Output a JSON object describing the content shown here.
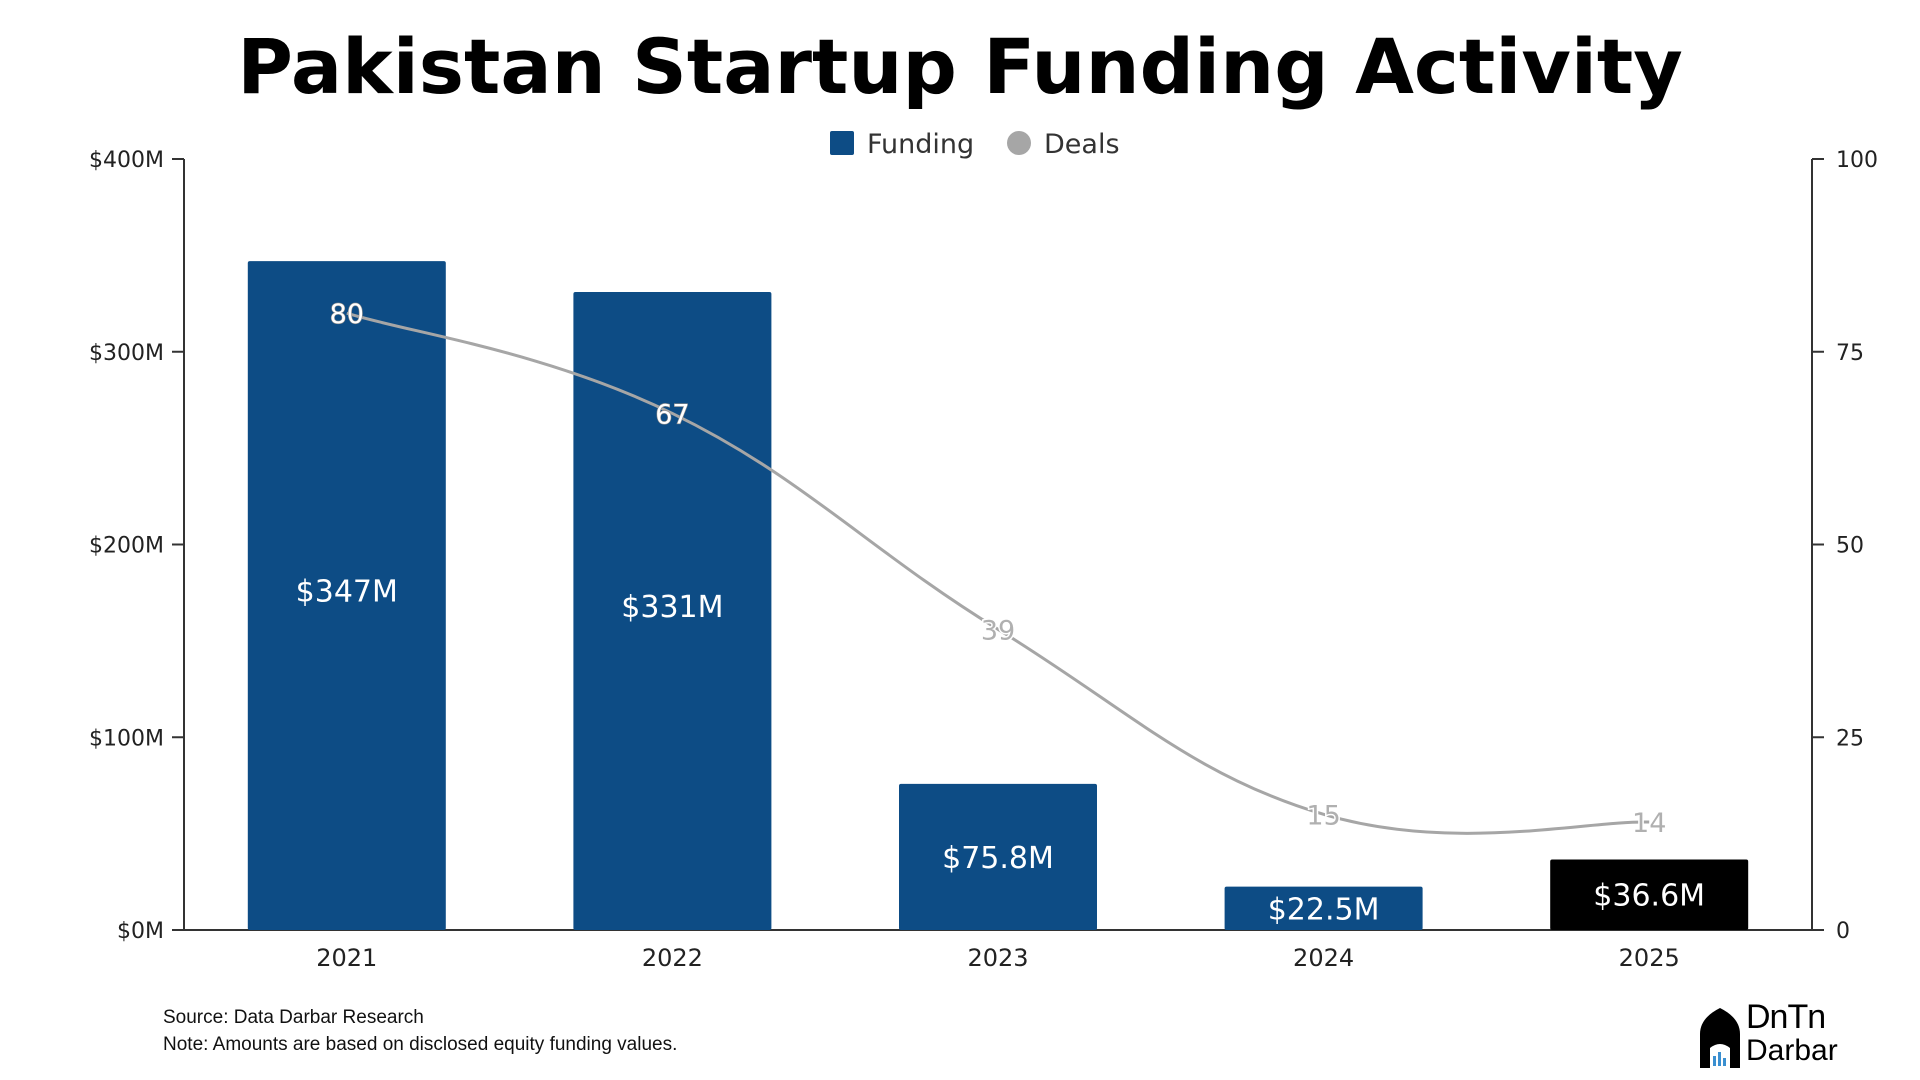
{
  "title": "Pakistan Startup Funding Activity",
  "chart_data": {
    "type": "bar",
    "title": "Pakistan Startup Funding Activity",
    "categories": [
      "2021",
      "2022",
      "2023",
      "2024",
      "2025"
    ],
    "series": [
      {
        "name": "Funding",
        "type": "bar",
        "axis": "left",
        "values": [
          347,
          331,
          75.8,
          22.5,
          36.6
        ],
        "labels": [
          "$347M",
          "$331M",
          "$75.8M",
          "$22.5M",
          "$36.6M"
        ],
        "colors": [
          "#0d4c85",
          "#0d4c85",
          "#0d4c85",
          "#0d4c85",
          "#000000"
        ]
      },
      {
        "name": "Deals",
        "type": "line",
        "axis": "right",
        "values": [
          80,
          67,
          39,
          15,
          14
        ],
        "labels": [
          "80",
          "67",
          "39",
          "15",
          "14"
        ],
        "color": "#a6a6a6"
      }
    ],
    "y_left": {
      "range": [
        0,
        400
      ],
      "ticks": [
        0,
        100,
        200,
        300,
        400
      ],
      "tick_labels": [
        "$0M",
        "$100M",
        "$200M",
        "$300M",
        "$400M"
      ]
    },
    "y_right": {
      "range": [
        0,
        100
      ],
      "ticks": [
        0,
        25,
        50,
        75,
        100
      ],
      "tick_labels": [
        "0",
        "25",
        "50",
        "75",
        "100"
      ]
    },
    "legend": {
      "position": "top-center",
      "items": [
        "Funding",
        "Deals"
      ]
    },
    "grid": false,
    "colors": {
      "bar": "#0d4c85",
      "highlight_bar": "#000000",
      "line": "#a6a6a6"
    }
  },
  "footer": {
    "source": "Source: Data Darbar Research",
    "note": "Note: Amounts are based on disclosed equity funding values."
  },
  "logo": {
    "line1": "DnTn",
    "line2": "Darbar"
  }
}
